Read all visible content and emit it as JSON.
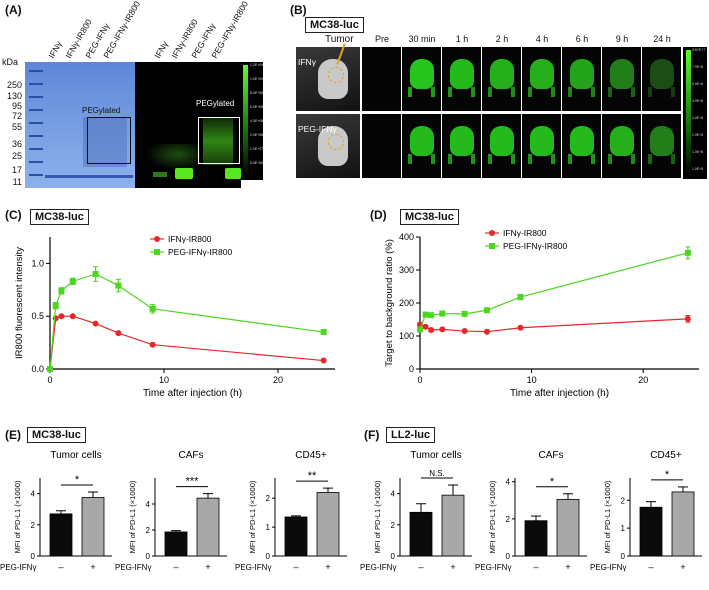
{
  "panels": {
    "A": {
      "label": "(A)",
      "lanes": [
        "IFNγ",
        "IFNγ-IR800",
        "PEG-IFNγ",
        "PEG-IFNγ-IR800",
        "IFNγ",
        "IFNγ-IR800",
        "PEG-IFNγ",
        "PEG-IFNγ-IR800"
      ],
      "kda_title": "kDa",
      "markers": [
        "250",
        "130",
        "95",
        "72",
        "55",
        "36",
        "25",
        "17",
        "11"
      ],
      "pegylated_left": "PEGylated",
      "pegylated_right": "PEGylated",
      "scale_ticks": [
        "1.2E+09",
        "1.0E+09",
        "8.0E+08",
        "6.0E+08",
        "4.0E+08",
        "2.0E+08",
        "1.0E+07",
        "5.0E+06"
      ]
    },
    "B": {
      "label": "(B)",
      "cell_line": "MC38-luc",
      "tumor_label": "Tumor",
      "rows": [
        "IFNγ",
        "PEG-IFNγ"
      ],
      "timepoints": [
        "Pre",
        "30 min",
        "1 h",
        "2 h",
        "4 h",
        "6 h",
        "9 h",
        "24 h"
      ],
      "intensity": [
        [
          0,
          0.9,
          0.85,
          0.8,
          0.8,
          0.75,
          0.55,
          0.25
        ],
        [
          0,
          0.85,
          0.85,
          0.85,
          0.85,
          0.85,
          0.8,
          0.55
        ]
      ],
      "scale_ticks": [
        "9.87E+7",
        "7.0E+6",
        "5.0E+6",
        "4.0E+6",
        "3.0E+6",
        "2.0E+6",
        "1.0E+6",
        "1.0E+5"
      ]
    },
    "C": {
      "label": "(C)",
      "cell_line": "MC38-luc",
      "chart_data": {
        "type": "line",
        "xlabel": "Time after injection (h)",
        "ylabel": "IR800 fluorescent intensity",
        "xlim": [
          0,
          25
        ],
        "ylim": [
          0,
          1.25
        ],
        "xticks": [
          0,
          10,
          20
        ],
        "yticks": [
          0.0,
          0.5,
          1.0
        ],
        "legend": "top-right",
        "series": [
          {
            "name": "IFNγ-IR800",
            "color": "#e8272a",
            "marker": "circle",
            "x": [
              0,
              0.5,
              1,
              2,
              4,
              6,
              9,
              24
            ],
            "y": [
              0.0,
              0.48,
              0.5,
              0.5,
              0.43,
              0.34,
              0.23,
              0.08
            ]
          },
          {
            "name": "PEG-IFNγ-IR800",
            "color": "#4bd620",
            "marker": "square",
            "x": [
              0,
              0.5,
              1,
              2,
              4,
              6,
              9,
              24
            ],
            "y": [
              0.0,
              0.6,
              0.74,
              0.83,
              0.9,
              0.79,
              0.57,
              0.35
            ],
            "err": [
              0,
              0.03,
              0.03,
              0.03,
              0.07,
              0.06,
              0.04,
              0.02
            ]
          }
        ]
      }
    },
    "D": {
      "label": "(D)",
      "cell_line": "MC38-luc",
      "chart_data": {
        "type": "line",
        "xlabel": "Time after injection (h)",
        "ylabel": "Target to background ratio (%)",
        "xlim": [
          0,
          25
        ],
        "ylim": [
          0,
          400
        ],
        "xticks": [
          0,
          10,
          20
        ],
        "yticks": [
          0,
          100,
          200,
          300,
          400
        ],
        "legend": "top-left",
        "series": [
          {
            "name": "IFNγ-IR800",
            "color": "#e8272a",
            "marker": "circle",
            "x": [
              0,
              0.5,
              1,
              2,
              4,
              6,
              9,
              24
            ],
            "y": [
              135,
              128,
              118,
              120,
              115,
              113,
              125,
              152
            ],
            "err": [
              5,
              5,
              5,
              4,
              4,
              4,
              4,
              10
            ]
          },
          {
            "name": "PEG-IFNγ-IR800",
            "color": "#4bd620",
            "marker": "square",
            "x": [
              0,
              0.5,
              1,
              2,
              4,
              6,
              9,
              24
            ],
            "y": [
              120,
              165,
              163,
              168,
              167,
              178,
              218,
              352
            ],
            "err": [
              5,
              5,
              5,
              5,
              5,
              5,
              8,
              18
            ]
          }
        ]
      }
    },
    "E": {
      "label": "(E)",
      "cell_line": "MC38-luc",
      "chart_data": [
        {
          "type": "bar",
          "title": "Tumor cells",
          "ylabel": "MFI of PD-L1 (×1000)",
          "xlabel": "PEG-IFNγ",
          "categories": [
            "–",
            "+"
          ],
          "values": [
            2.7,
            3.75
          ],
          "err": [
            0.2,
            0.35
          ],
          "ylim": [
            0,
            5
          ],
          "yticks": [
            0,
            2,
            4
          ],
          "sig": "*"
        },
        {
          "type": "bar",
          "title": "CAFs",
          "ylabel": "MFI of PD-L1 (×1000)",
          "xlabel": "PEG-IFNγ",
          "categories": [
            "–",
            "+"
          ],
          "values": [
            1.85,
            4.45
          ],
          "err": [
            0.1,
            0.35
          ],
          "ylim": [
            0,
            6
          ],
          "yticks": [
            0,
            2,
            4
          ],
          "sig": "***"
        },
        {
          "type": "bar",
          "title": "CD45+",
          "ylabel": "MFI of PD-L1 (×1000)",
          "xlabel": "PEG-IFNγ",
          "categories": [
            "–",
            "+"
          ],
          "values": [
            1.35,
            2.2
          ],
          "err": [
            0.04,
            0.15
          ],
          "ylim": [
            0,
            2.7
          ],
          "yticks": [
            0,
            1,
            2
          ],
          "sig": "**"
        }
      ]
    },
    "F": {
      "label": "(F)",
      "cell_line": "LL2-luc",
      "chart_data": [
        {
          "type": "bar",
          "title": "Tumor cells",
          "ylabel": "MFI of PD-L1 (×1000)",
          "xlabel": "PEG-IFNγ",
          "categories": [
            "–",
            "+"
          ],
          "values": [
            2.8,
            3.9
          ],
          "err": [
            0.55,
            0.65
          ],
          "ylim": [
            0,
            5
          ],
          "yticks": [
            0,
            2,
            4
          ],
          "sig": "N.S."
        },
        {
          "type": "bar",
          "title": "CAFs",
          "ylabel": "MFI of PD-L1 (×1000)",
          "xlabel": "PEG-IFNγ",
          "categories": [
            "–",
            "+"
          ],
          "values": [
            1.9,
            3.05
          ],
          "err": [
            0.25,
            0.3
          ],
          "ylim": [
            0,
            4.2
          ],
          "yticks": [
            0,
            2,
            4
          ],
          "sig": "*"
        },
        {
          "type": "bar",
          "title": "CD45+",
          "ylabel": "MFI of PD-L1 (×1000)",
          "xlabel": "PEG-IFNγ",
          "categories": [
            "–",
            "+"
          ],
          "values": [
            1.75,
            2.3
          ],
          "err": [
            0.2,
            0.18
          ],
          "ylim": [
            0,
            2.8
          ],
          "yticks": [
            0,
            1,
            2
          ],
          "sig": "*"
        }
      ]
    }
  },
  "colors": {
    "red": "#e8272a",
    "green": "#4bd620",
    "gel_blue": "#6f8fd6",
    "bar_black": "#0a0a0a",
    "bar_grey": "#a8a8a8"
  }
}
